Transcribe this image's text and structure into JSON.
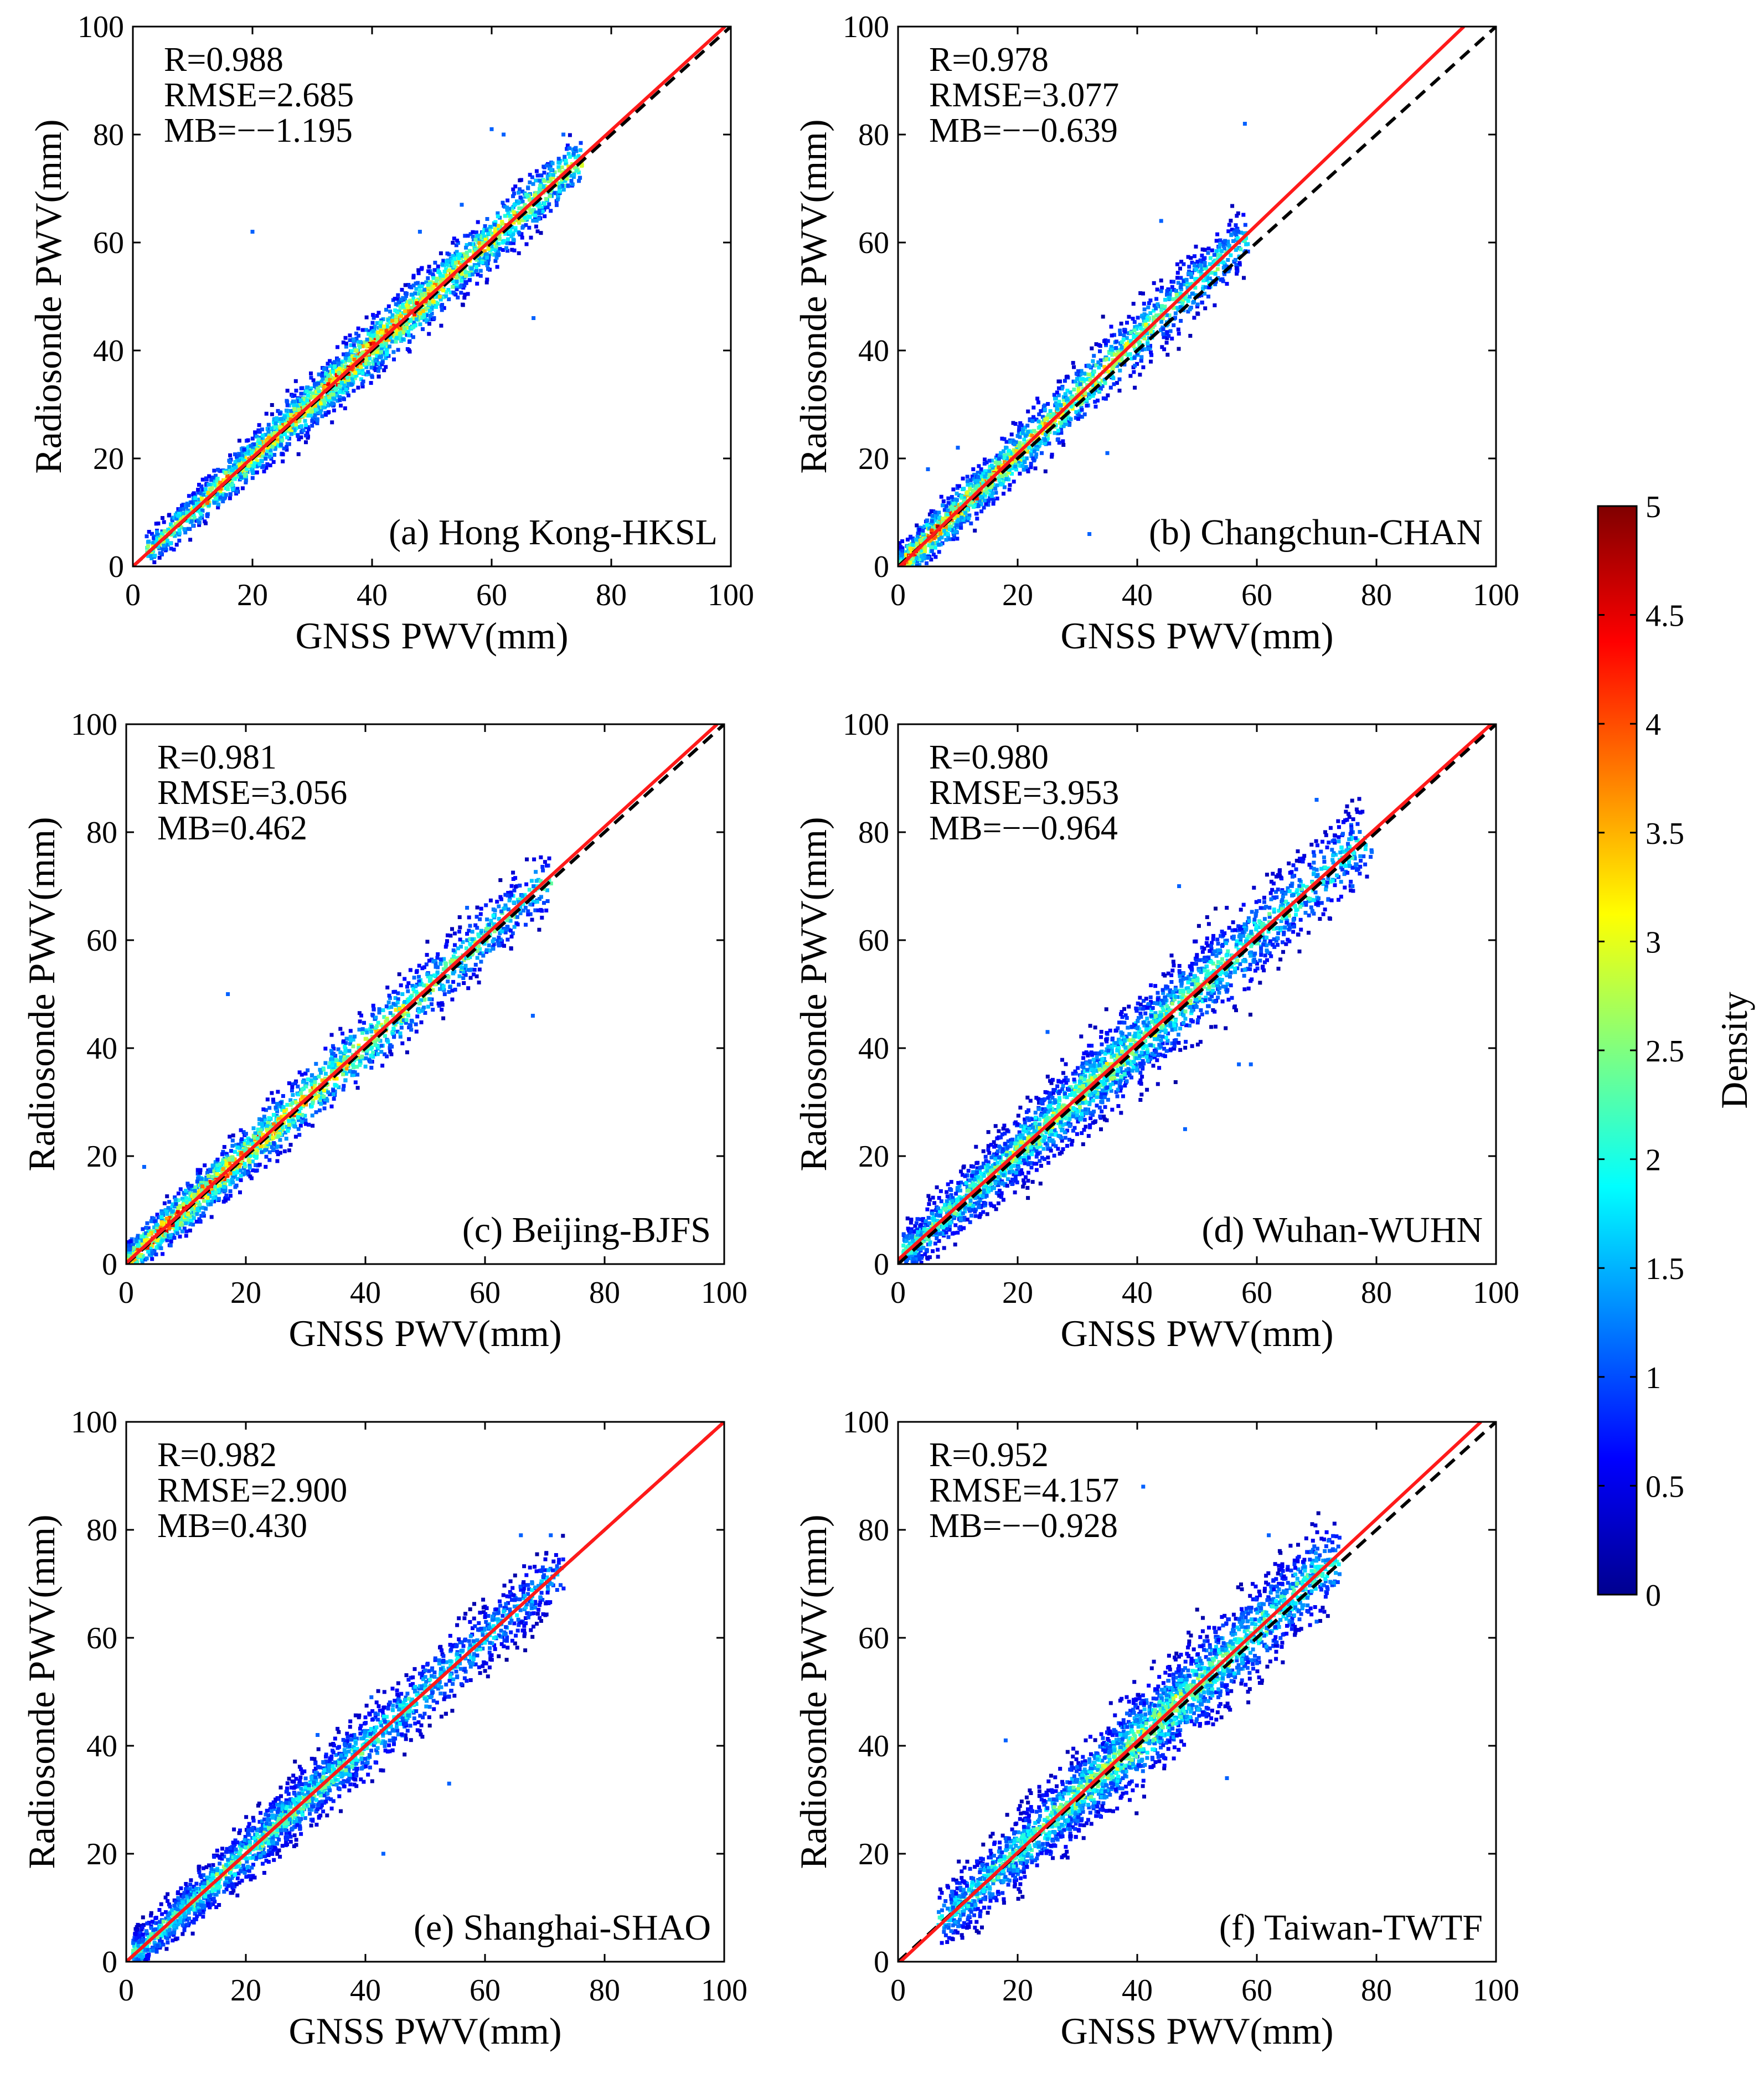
{
  "figure": {
    "x_tick_labels": [
      "0",
      "20",
      "40",
      "60",
      "80",
      "100"
    ],
    "y_tick_labels": [
      "0",
      "20",
      "40",
      "60",
      "80",
      "100"
    ],
    "colorbar": {
      "label": "Density",
      "tick_labels": [
        "0",
        "0.5",
        "1",
        "1.5",
        "2",
        "2.5",
        "3",
        "3.5",
        "4",
        "4.5",
        "5"
      ]
    }
  },
  "chart_data": [
    {
      "type": "scatter",
      "panel_label": "(a) Hong Kong-HKSL",
      "xlabel": "GNSS PWV(mm)",
      "ylabel": "Radiosonde PWV(mm)",
      "xlim": [
        0,
        100
      ],
      "ylim": [
        0,
        100
      ],
      "stats": {
        "r": "R=0.988",
        "rmse": "RMSE=2.685",
        "mb": "MB=−−1.195"
      },
      "fit_line": {
        "slope": 1.01,
        "intercept": 0.0
      },
      "identity_line": {
        "slope": 1,
        "intercept": 0
      },
      "point_cloud": {
        "x_range": [
          3,
          74
        ],
        "center_x": 38,
        "spread": 2.6,
        "count": 2600,
        "max_density": 5
      },
      "outliers": [
        [
          20,
          62
        ],
        [
          48,
          62
        ],
        [
          67,
          46
        ],
        [
          60,
          81
        ],
        [
          62,
          80
        ],
        [
          72,
          80
        ],
        [
          55,
          67
        ]
      ]
    },
    {
      "type": "scatter",
      "panel_label": "(b) Changchun-CHAN",
      "xlabel": "GNSS PWV(mm)",
      "ylabel": "Radiosonde PWV(mm)",
      "xlim": [
        0,
        100
      ],
      "ylim": [
        0,
        100
      ],
      "stats": {
        "r": "R=0.978",
        "rmse": "RMSE=3.077",
        "mb": "MB=−−0.639"
      },
      "fit_line": {
        "slope": 1.06,
        "intercept": -0.3
      },
      "identity_line": {
        "slope": 1,
        "intercept": 0
      },
      "point_cloud": {
        "x_range": [
          0,
          58
        ],
        "center_x": 6,
        "spread": 3.0,
        "count": 2200,
        "max_density": 5
      },
      "outliers": [
        [
          58,
          82
        ],
        [
          44,
          64
        ],
        [
          35,
          21
        ],
        [
          10,
          22
        ],
        [
          5,
          18
        ],
        [
          32,
          6
        ],
        [
          44,
          51
        ],
        [
          57,
          60
        ]
      ]
    },
    {
      "type": "scatter",
      "panel_label": "(c) Beijing-BJFS",
      "xlabel": "GNSS PWV(mm)",
      "ylabel": "Radiosonde PWV(mm)",
      "xlim": [
        0,
        100
      ],
      "ylim": [
        0,
        100
      ],
      "stats": {
        "r": "R=0.981",
        "rmse": "RMSE=3.056",
        "mb": "MB=0.462"
      },
      "fit_line": {
        "slope": 1.01,
        "intercept": 0.2
      },
      "identity_line": {
        "slope": 1,
        "intercept": 0
      },
      "point_cloud": {
        "x_range": [
          0,
          70
        ],
        "center_x": 8,
        "spread": 3.0,
        "count": 2300,
        "max_density": 5
      },
      "outliers": [
        [
          17,
          50
        ],
        [
          68,
          46
        ],
        [
          25,
          29
        ],
        [
          57,
          66
        ],
        [
          3,
          18
        ]
      ]
    },
    {
      "type": "scatter",
      "panel_label": "(d) Wuhan-WUHN",
      "xlabel": "GNSS PWV(mm)",
      "ylabel": "Radiosonde PWV(mm)",
      "xlim": [
        0,
        100
      ],
      "ylim": [
        0,
        100
      ],
      "stats": {
        "r": "R=0.980",
        "rmse": "RMSE=3.953",
        "mb": "MB=−−0.964"
      },
      "fit_line": {
        "slope": 1.0,
        "intercept": 0.8
      },
      "identity_line": {
        "slope": 1,
        "intercept": 0
      },
      "point_cloud": {
        "x_range": [
          2,
          78
        ],
        "center_x": 30,
        "spread": 4.0,
        "count": 2700,
        "max_density": 3.5
      },
      "outliers": [
        [
          48,
          25
        ],
        [
          59,
          37
        ],
        [
          70,
          86
        ],
        [
          76,
          70
        ],
        [
          47,
          70
        ],
        [
          57,
          37
        ],
        [
          25,
          43
        ]
      ]
    },
    {
      "type": "scatter",
      "panel_label": "(e) Shanghai-SHAO",
      "xlabel": "GNSS PWV(mm)",
      "ylabel": "Radiosonde PWV(mm)",
      "xlim": [
        0,
        100
      ],
      "ylim": [
        0,
        100
      ],
      "stats": {
        "r": "R=0.982",
        "rmse": "RMSE=2.900",
        "mb": "MB=0.430"
      },
      "fit_line": {
        "slope": 1.0,
        "intercept": 0.0
      },
      "identity_line": {
        "slope": 1,
        "intercept": 0
      },
      "point_cloud": {
        "x_range": [
          2,
          72
        ],
        "center_x": 20,
        "spread": 3.2,
        "count": 2300,
        "max_density": 3.2
      },
      "outliers": [
        [
          54,
          33
        ],
        [
          43,
          20
        ],
        [
          71,
          79
        ],
        [
          66,
          79
        ],
        [
          41,
          49
        ],
        [
          32,
          42
        ]
      ]
    },
    {
      "type": "scatter",
      "panel_label": "(f) Taiwan-TWTF",
      "xlabel": "GNSS PWV(mm)",
      "ylabel": "Radiosonde PWV(mm)",
      "xlim": [
        0,
        100
      ],
      "ylim": [
        0,
        100
      ],
      "stats": {
        "r": "R=0.952",
        "rmse": "RMSE=4.157",
        "mb": "MB=−−0.928"
      },
      "fit_line": {
        "slope": 1.03,
        "intercept": -0.4
      },
      "identity_line": {
        "slope": 1,
        "intercept": 0
      },
      "point_cloud": {
        "x_range": [
          8,
          72
        ],
        "center_x": 40,
        "spread": 4.2,
        "count": 2700,
        "max_density": 3.4
      },
      "outliers": [
        [
          41,
          88
        ],
        [
          18,
          41
        ],
        [
          9,
          13
        ],
        [
          62,
          79
        ],
        [
          72,
          78
        ],
        [
          70,
          63
        ],
        [
          55,
          34
        ]
      ]
    }
  ]
}
